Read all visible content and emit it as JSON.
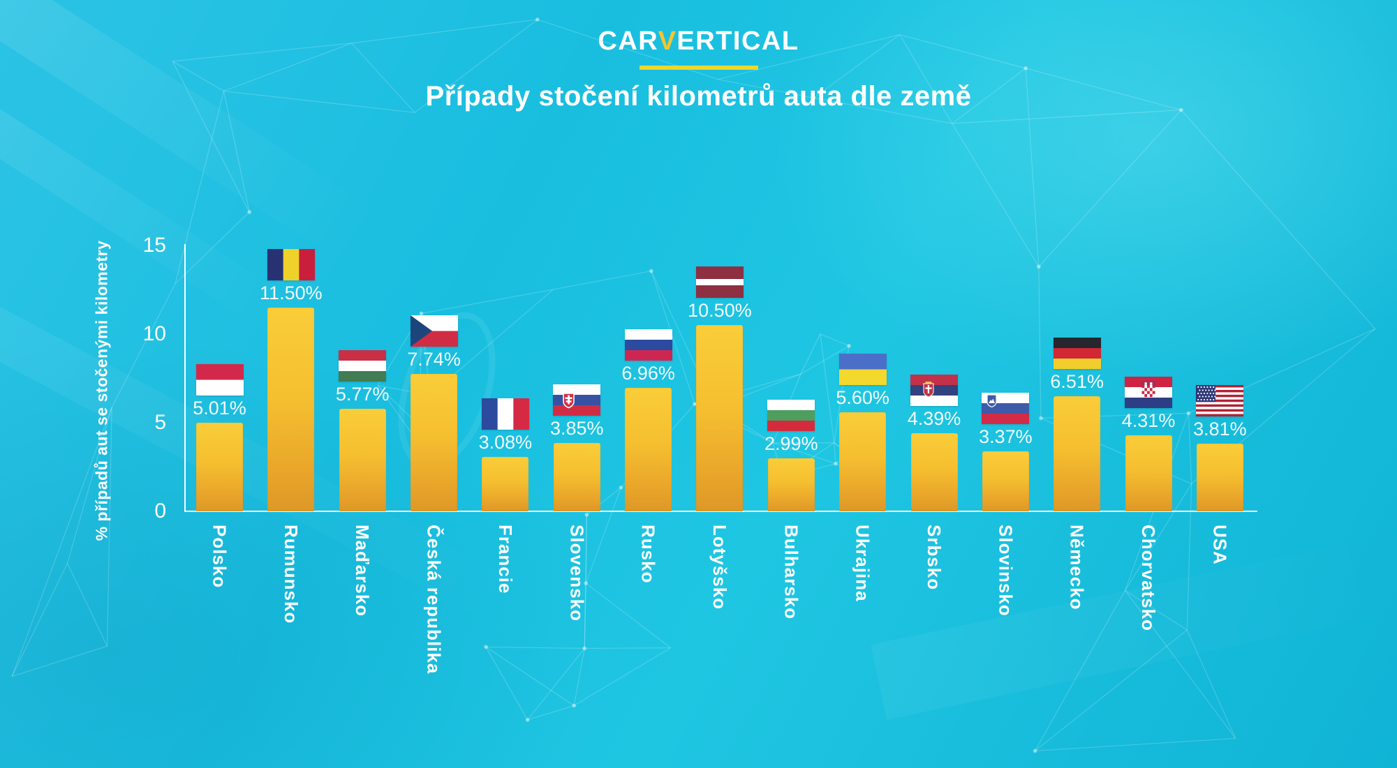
{
  "logo": {
    "car": "CAR",
    "v": "V",
    "ertical": "ERTICAL"
  },
  "title": "Případy stočení kilometrů auta dle země",
  "y_axis": {
    "title": "% případů aut se stočenými kilometry",
    "ticks": [
      "15",
      "10",
      "5",
      "0"
    ],
    "tick_values": [
      15,
      10,
      5,
      0
    ]
  },
  "chart_data": {
    "type": "bar",
    "title": "Případy stočení kilometrů auta dle země",
    "xlabel": "",
    "ylabel": "% případů aut se stočenými kilometry",
    "ylim": [
      0,
      15
    ],
    "yticks": [
      0,
      5,
      10,
      15
    ],
    "grid": false,
    "legend": false,
    "bar_color": "#F6C52E",
    "categories": [
      "Polsko",
      "Rumunsko",
      "Maďarsko",
      "Česká republika",
      "Francie",
      "Slovensko",
      "Rusko",
      "Lotyšsko",
      "Bulharsko",
      "Ukrajina",
      "Srbsko",
      "Slovinsko",
      "Německo",
      "Chorvatsko",
      "USA"
    ],
    "values": [
      5.01,
      11.5,
      5.77,
      7.74,
      3.08,
      3.85,
      6.96,
      10.5,
      2.99,
      5.6,
      4.39,
      3.37,
      6.51,
      4.31,
      3.81
    ],
    "labels": [
      "5.01%",
      "11.50%",
      "5.77%",
      "7.74%",
      "3.08%",
      "3.85%",
      "6.96%",
      "10.50%",
      "2.99%",
      "5.60%",
      "4.39%",
      "3.37%",
      "6.51%",
      "4.31%",
      "3.81%"
    ]
  },
  "flags": [
    {
      "name": "flag-poland-icon",
      "type": "h",
      "stripes": [
        [
          "#D2294B",
          1
        ],
        [
          "#FFFFFF",
          1
        ]
      ]
    },
    {
      "name": "flag-romania-icon",
      "type": "v",
      "stripes": [
        [
          "#283272",
          1
        ],
        [
          "#EFD229",
          1
        ],
        [
          "#C91F3D",
          1
        ]
      ]
    },
    {
      "name": "flag-hungary-icon",
      "type": "h",
      "stripes": [
        [
          "#C93046",
          1
        ],
        [
          "#FFFFFF",
          1
        ],
        [
          "#417C52",
          1
        ]
      ]
    },
    {
      "name": "flag-czechia-icon",
      "type": "czech",
      "colors": {
        "white": "#FFFFFF",
        "red": "#D02D45",
        "blue": "#1C457C"
      }
    },
    {
      "name": "flag-france-icon",
      "type": "v",
      "stripes": [
        [
          "#2C4A9E",
          1
        ],
        [
          "#FFFFFF",
          1
        ],
        [
          "#D62A44",
          1
        ]
      ]
    },
    {
      "name": "flag-slovakia-icon",
      "type": "h",
      "stripes": [
        [
          "#FFFFFF",
          1
        ],
        [
          "#3851A3",
          1
        ],
        [
          "#D02D45",
          1
        ]
      ],
      "emblem": "slovakia"
    },
    {
      "name": "flag-russia-icon",
      "type": "h",
      "stripes": [
        [
          "#FFFFFF",
          1
        ],
        [
          "#2C4AA0",
          1
        ],
        [
          "#CE2653",
          1
        ]
      ]
    },
    {
      "name": "flag-latvia-icon",
      "type": "h",
      "stripes": [
        [
          "#8E2F42",
          2
        ],
        [
          "#FFFFFF",
          1
        ],
        [
          "#8E2F42",
          2
        ]
      ]
    },
    {
      "name": "flag-bulgaria-icon",
      "type": "h",
      "stripes": [
        [
          "#FFFFFF",
          1
        ],
        [
          "#4E9E60",
          1
        ],
        [
          "#D42B3C",
          1
        ]
      ]
    },
    {
      "name": "flag-ukraine-icon",
      "type": "h",
      "stripes": [
        [
          "#4B6FC8",
          1
        ],
        [
          "#F2D92B",
          1
        ]
      ]
    },
    {
      "name": "flag-serbia-icon",
      "type": "h",
      "stripes": [
        [
          "#C33148",
          1
        ],
        [
          "#31427F",
          1
        ],
        [
          "#FFFFFF",
          1
        ]
      ],
      "emblem": "serbia"
    },
    {
      "name": "flag-slovenia-icon",
      "type": "h",
      "stripes": [
        [
          "#FFFFFF",
          1
        ],
        [
          "#3D5BA9",
          1
        ],
        [
          "#D22B45",
          1
        ]
      ],
      "emblem": "slovenia"
    },
    {
      "name": "flag-germany-icon",
      "type": "h",
      "stripes": [
        [
          "#26262E",
          1
        ],
        [
          "#D22735",
          1
        ],
        [
          "#F2CE2C",
          1
        ]
      ]
    },
    {
      "name": "flag-croatia-icon",
      "type": "h",
      "stripes": [
        [
          "#CE2343",
          1
        ],
        [
          "#FFFFFF",
          1
        ],
        [
          "#2D3E85",
          1
        ]
      ],
      "emblem": "croatia"
    },
    {
      "name": "flag-usa-icon",
      "type": "usa",
      "colors": {
        "red": "#B22234",
        "white": "#FFFFFF",
        "blue": "#2F3676"
      }
    }
  ],
  "colors": {
    "background": "#1BBFDD",
    "bar_top": "#FACD39",
    "bar_bottom": "#DD9827",
    "accent_yellow": "#F6C52E",
    "logo_underline": "#EFD72B",
    "text": "#FFFFFF"
  }
}
